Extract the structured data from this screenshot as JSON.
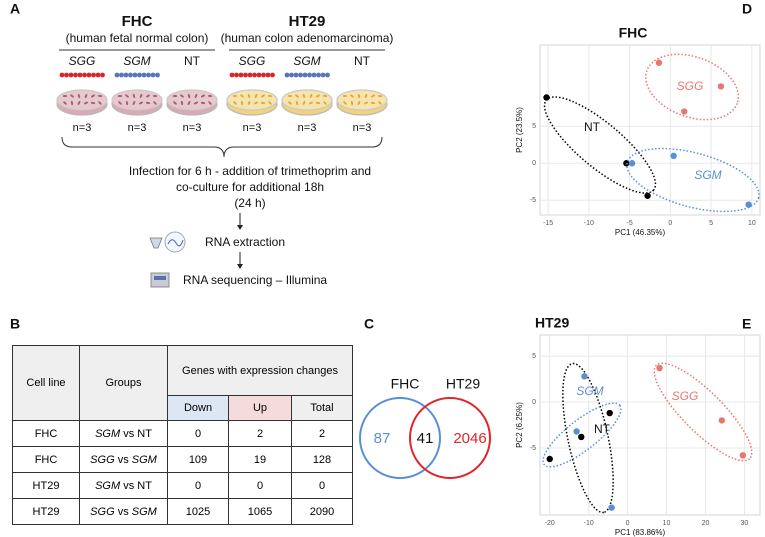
{
  "panel_a": {
    "label": "A",
    "groups": [
      {
        "name": "FHC",
        "description": "(human fetal normal colon)",
        "conditions": [
          "SGG",
          "SGM",
          "NT"
        ],
        "n": [
          "n=3",
          "n=3",
          "n=3"
        ]
      },
      {
        "name": "HT29",
        "description": "(human colon adenomarcinoma)",
        "conditions": [
          "SGG",
          "SGM",
          "NT"
        ],
        "n": [
          "n=3",
          "n=3",
          "n=3"
        ]
      }
    ],
    "steps": [
      "Infection for 6 h - addition of trimethoprim and",
      "co-culture for additional 18h",
      "(24 h)"
    ],
    "rna_extraction": "RNA extraction",
    "rna_sequencing": "RNA sequencing – Illumina"
  },
  "panel_b": {
    "label": "B",
    "table": {
      "headers": [
        "Cell line",
        "Groups",
        "Genes with expression changes"
      ],
      "subheaders": [
        "Down",
        "Up",
        "Total"
      ],
      "rows": [
        {
          "cell_line": "FHC",
          "group": [
            "SGM",
            "vs",
            "NT"
          ],
          "down": 0,
          "up": 2,
          "total": 2
        },
        {
          "cell_line": "FHC",
          "group": [
            "SGG",
            "vs",
            "SGM"
          ],
          "down": 109,
          "up": 19,
          "total": 128
        },
        {
          "cell_line": "HT29",
          "group": [
            "SGM",
            "vs",
            "NT"
          ],
          "down": 0,
          "up": 0,
          "total": 0
        },
        {
          "cell_line": "HT29",
          "group": [
            "SGG",
            "vs",
            "SGM"
          ],
          "down": 1025,
          "up": 1065,
          "total": 2090
        }
      ]
    }
  },
  "panel_c": {
    "label": "C",
    "sets": [
      "FHC",
      "HT29"
    ],
    "only_first": 87,
    "both": 41,
    "only_second": 2046
  },
  "chart_data": [
    {
      "type": "scatter",
      "panel": "D",
      "title": "FHC",
      "x_label": "PC1 (46.35%)",
      "y_label": "PC2 (23.5%)",
      "xlim": [
        -16,
        11
      ],
      "ylim": [
        -7,
        16
      ],
      "xticks": [
        -15,
        -10,
        -5,
        0,
        5,
        10
      ],
      "yticks": [
        -5,
        0,
        5
      ],
      "grid": true,
      "series": [
        {
          "name": "NT",
          "color": "#000000",
          "x": [
            -15.2,
            -5.4,
            -2.8
          ],
          "values": [
            8.9,
            0,
            -4.4
          ]
        },
        {
          "name": "SGM",
          "color": "#5b8fd4",
          "x": [
            -4.7,
            0.4,
            9.6
          ],
          "values": [
            0,
            1,
            -5.6
          ]
        },
        {
          "name": "SGG",
          "color": "#e8776f",
          "x": [
            -1.4,
            6.2,
            1.7
          ],
          "values": [
            13.6,
            10.4,
            7
          ]
        }
      ]
    },
    {
      "type": "scatter",
      "panel": "E",
      "title": "HT29",
      "x_label": "PC1 (83.86%)",
      "y_label": "PC2 (6.25%)",
      "xlim": [
        -22.5,
        34
      ],
      "ylim": [
        -12.3,
        7.3
      ],
      "xticks": [
        -20,
        -10,
        0,
        10,
        20,
        30
      ],
      "yticks": [
        -5,
        0,
        5
      ],
      "grid": true,
      "series": [
        {
          "name": "NT",
          "color": "#000000",
          "x": [
            -20,
            -11.9,
            -4.6
          ],
          "values": [
            -6.2,
            -3.8,
            -1.2
          ]
        },
        {
          "name": "SGM",
          "color": "#5b8fd4",
          "x": [
            -11.1,
            -13.1,
            -4.1
          ],
          "values": [
            2.8,
            -3.2,
            -11.5
          ]
        },
        {
          "name": "SGG",
          "color": "#e8776f",
          "x": [
            8.2,
            24.2,
            29.6
          ],
          "values": [
            3.7,
            -2,
            -5.8
          ]
        }
      ]
    }
  ]
}
